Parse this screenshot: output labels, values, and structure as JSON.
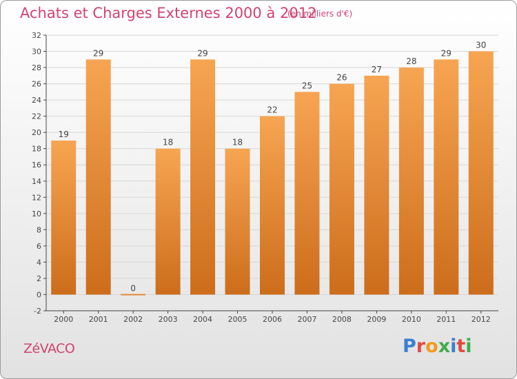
{
  "header": {
    "title": "Achats et Charges Externes 2000 à 2012",
    "subtitle": "(en milliers d'€)"
  },
  "footer": {
    "place": "ZéVACO",
    "logo_letters": [
      "P",
      "r",
      "o",
      "x",
      "i",
      "t",
      "i"
    ],
    "logo_colors": [
      "#3a7fd0",
      "#e04b3f",
      "#f39a1e",
      "#3fae49",
      "#3a7fd0",
      "#e04b3f",
      "#3fae49"
    ]
  },
  "colors": {
    "bar_top": "#f7a552",
    "bar_bottom": "#cc6d1b",
    "text": "#d2426f",
    "axis": "#444444",
    "grid": "#d6d6d6"
  },
  "chart_data": {
    "type": "bar",
    "categories": [
      "2000",
      "2001",
      "2002",
      "2003",
      "2004",
      "2005",
      "2006",
      "2007",
      "2008",
      "2009",
      "2010",
      "2011",
      "2012"
    ],
    "values": [
      19,
      29,
      0,
      18,
      29,
      18,
      22,
      25,
      26,
      27,
      28,
      29,
      30
    ],
    "data_labels": [
      "19",
      "29",
      "0",
      "18",
      "29",
      "18",
      "22",
      "25",
      "26",
      "27",
      "28",
      "29",
      "30"
    ],
    "ylim": [
      -2,
      32
    ],
    "yticks": [
      "-2",
      "0",
      "2",
      "4",
      "6",
      "8",
      "10",
      "12",
      "14",
      "16",
      "18",
      "20",
      "22",
      "24",
      "26",
      "28",
      "30",
      "32"
    ],
    "grid": true,
    "legend": "none"
  }
}
